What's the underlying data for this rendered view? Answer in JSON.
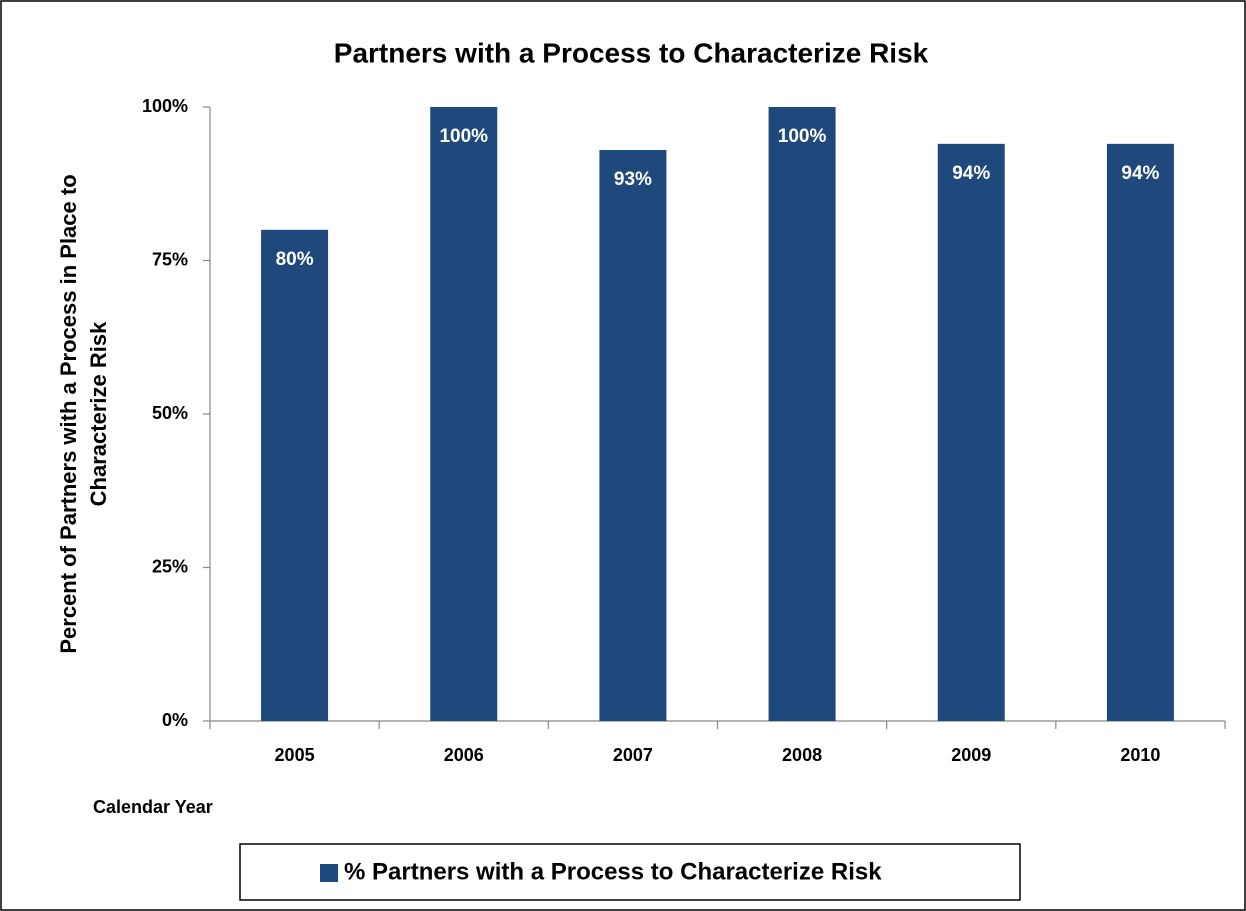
{
  "chart_data": {
    "type": "bar",
    "title": "Partners with a Process to Characterize Risk",
    "y_label": [
      "Percent of Partners with a Process in Place to",
      "Characterize Risk"
    ],
    "x_label": "Calendar Year",
    "categories": [
      "2005",
      "2006",
      "2007",
      "2008",
      "2009",
      "2010"
    ],
    "series": [
      {
        "name": "% Partners with a Process to Characterize Risk",
        "color": "#1f497d",
        "values": [
          80,
          100,
          93,
          100,
          94,
          94
        ],
        "value_labels": [
          "80%",
          "100%",
          "93%",
          "100%",
          "94%",
          "94%"
        ]
      }
    ],
    "ylim": [
      0,
      100
    ],
    "yticks": [
      {
        "value": 0,
        "label": "0%"
      },
      {
        "value": 25,
        "label": "25%"
      },
      {
        "value": 50,
        "label": "50%"
      },
      {
        "value": 75,
        "label": "75%"
      },
      {
        "value": 100,
        "label": "100%"
      }
    ],
    "grid": false,
    "legend": "bottom"
  }
}
